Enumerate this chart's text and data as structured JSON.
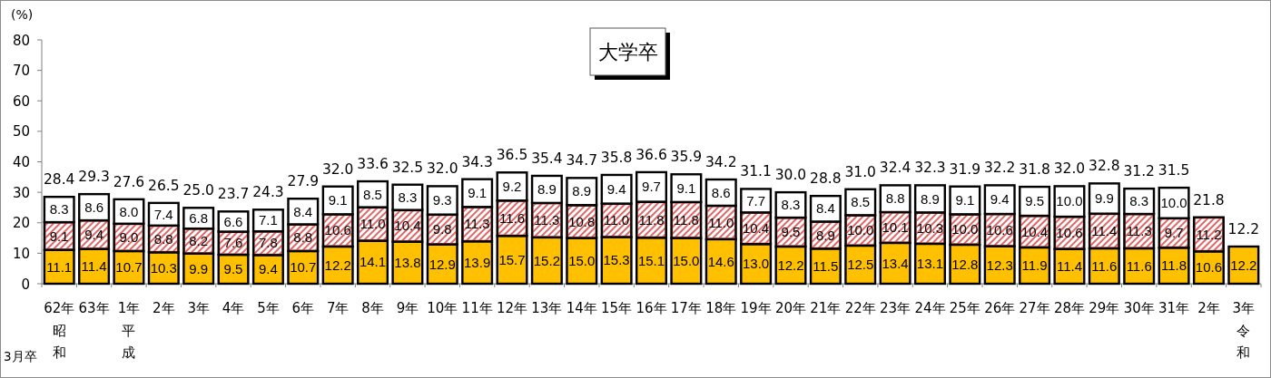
{
  "chart_data": {
    "type": "bar",
    "stacked": true,
    "title": "大学卒",
    "xlabel": "3月卒",
    "ylabel": "(%)",
    "categories": [
      "62年昭和",
      "63年",
      "1年平成",
      "2年",
      "3年",
      "4年",
      "5年",
      "6年",
      "7年",
      "8年",
      "9年",
      "10年",
      "11年",
      "12年",
      "13年",
      "14年",
      "15年",
      "16年",
      "17年",
      "18年",
      "19年",
      "20年",
      "21年",
      "22年",
      "23年",
      "24年",
      "25年",
      "26年",
      "27年",
      "28年",
      "29年",
      "30年",
      "31年",
      "2年",
      "3年令和"
    ],
    "series": [
      {
        "color": "#ffc000",
        "values": [
          11.1,
          11.4,
          10.7,
          10.3,
          9.9,
          9.5,
          9.4,
          10.7,
          12.2,
          14.1,
          13.8,
          12.9,
          13.9,
          15.7,
          15.2,
          15.0,
          15.3,
          15.1,
          15.0,
          14.6,
          13.0,
          12.2,
          11.5,
          12.5,
          13.4,
          13.1,
          12.8,
          12.3,
          11.9,
          11.4,
          11.6,
          11.6,
          11.8,
          10.6,
          12.2
        ],
        "value_labels": [
          "11.1",
          "11.4",
          "10.7",
          "10.3",
          "9.9",
          "9.5",
          "9.4",
          "10.7",
          "12.2",
          "14.1",
          "13.8",
          "12.9",
          "13.9",
          "15.7",
          "15.2",
          "15.0",
          "15.3",
          "15.1",
          "15.0",
          "14.6",
          "13.0",
          "12.2",
          "11.5",
          "12.5",
          "13.4",
          "13.1",
          "12.8",
          "12.3",
          "11.9",
          "11.4",
          "11.6",
          "11.6",
          "11.8",
          "10.6",
          "12.2"
        ]
      },
      {
        "color": "#e06666",
        "values": [
          9.1,
          9.4,
          9.0,
          8.8,
          8.2,
          7.6,
          7.8,
          8.8,
          10.6,
          11.0,
          10.4,
          9.8,
          11.3,
          11.6,
          11.3,
          10.8,
          11.0,
          11.8,
          11.8,
          11.0,
          10.4,
          9.5,
          8.9,
          10.0,
          10.1,
          10.3,
          10.0,
          10.6,
          10.4,
          10.6,
          11.4,
          11.3,
          9.7,
          11.2,
          null
        ],
        "value_labels": [
          "9.1",
          "9.4",
          "9.0",
          "8.8",
          "8.2",
          "7.6",
          "7.8",
          "8.8",
          "10.6",
          "11.0",
          "10.4",
          "9.8",
          "11.3",
          "11.6",
          "11.3",
          "10.8",
          "11.0",
          "11.8",
          "11.8",
          "11.0",
          "10.4",
          "9.5",
          "8.9",
          "10.0",
          "10.1",
          "10.3",
          "10.0",
          "10.6",
          "10.4",
          "10.6",
          "11.4",
          "11.3",
          "9.7",
          "11.2",
          null
        ]
      },
      {
        "color": "#ffffff",
        "values": [
          8.3,
          8.6,
          8.0,
          7.4,
          6.8,
          6.6,
          7.1,
          8.4,
          9.1,
          8.5,
          8.3,
          9.3,
          9.1,
          9.2,
          8.9,
          8.9,
          9.4,
          9.7,
          9.1,
          8.6,
          7.7,
          8.3,
          8.4,
          8.5,
          8.8,
          8.9,
          9.1,
          9.4,
          9.5,
          10.0,
          9.9,
          8.3,
          10.0,
          null,
          null
        ],
        "value_labels": [
          "8.3",
          "8.6",
          "8.0",
          "7.4",
          "6.8",
          "6.6",
          "7.1",
          "8.4",
          "9.1",
          "8.5",
          "8.3",
          "9.3",
          "9.1",
          "9.2",
          "8.9",
          "8.9",
          "9.4",
          "9.7",
          "9.1",
          "8.6",
          "7.7",
          "8.3",
          "8.4",
          "8.5",
          "8.8",
          "8.9",
          "9.1",
          "9.4",
          "9.5",
          "10.0",
          "9.9",
          "8.3",
          "10.0",
          null,
          null
        ]
      }
    ],
    "totals": [
      "28.4",
      "29.3",
      "27.6",
      "26.5",
      "25.0",
      "23.7",
      "24.3",
      "27.9",
      "32.0",
      "33.6",
      "32.5",
      "32.0",
      "34.3",
      "36.5",
      "35.4",
      "34.7",
      "35.8",
      "36.6",
      "35.9",
      "34.2",
      "31.1",
      "30.0",
      "28.8",
      "31.0",
      "32.4",
      "32.3",
      "31.9",
      "32.2",
      "31.8",
      "32.0",
      "32.8",
      "31.2",
      "31.5",
      "21.8",
      "12.2"
    ],
    "ylim": [
      0,
      80
    ],
    "yticks": [
      0,
      10,
      20,
      30,
      40,
      50,
      60,
      70,
      80
    ]
  }
}
